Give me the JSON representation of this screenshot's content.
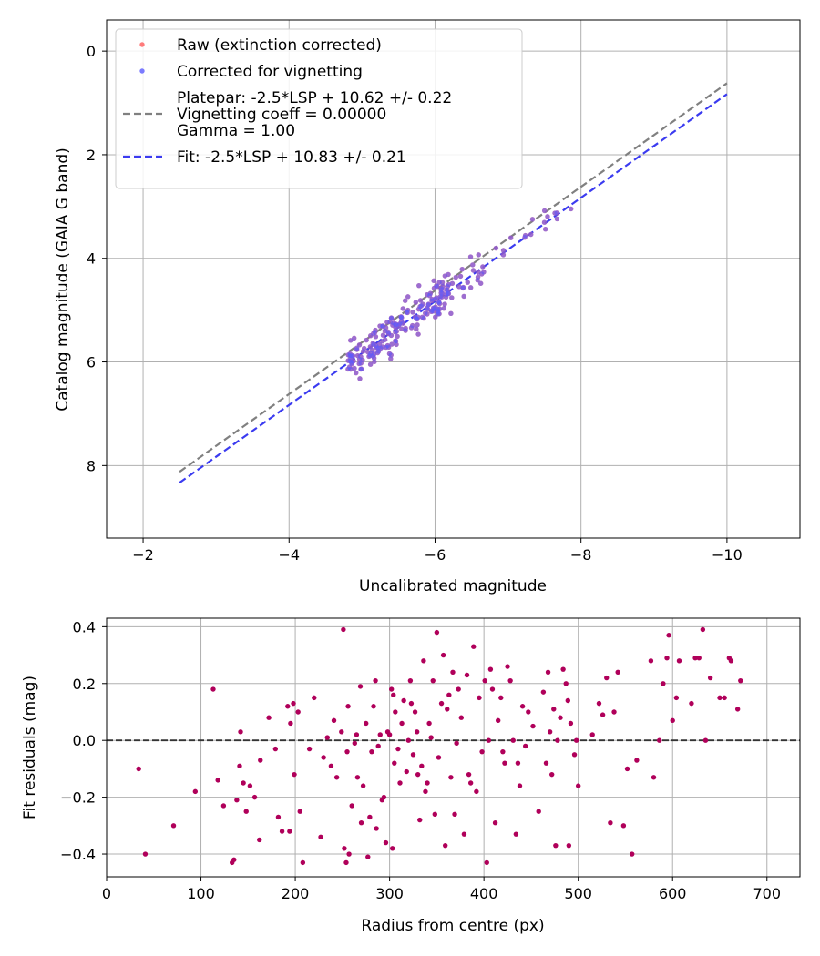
{
  "chart_data": [
    {
      "type": "scatter",
      "xlabel": "Uncalibrated magnitude",
      "ylabel": "Catalog magnitude (GAIA G band)",
      "xlim": [
        -1.5,
        -11.0
      ],
      "ylim": [
        9.4,
        -0.6
      ],
      "xticks": [
        -2,
        -4,
        -6,
        -8,
        -10
      ],
      "xtick_labels": [
        "−2",
        "−4",
        "−6",
        "−8",
        "−10"
      ],
      "yticks": [
        0,
        2,
        4,
        6,
        8
      ],
      "ytick_labels": [
        "0",
        "2",
        "4",
        "6",
        "8"
      ],
      "grid": true,
      "legend_position": "top-left",
      "series": [
        {
          "name": "Raw (extinction corrected)",
          "kind": "scatter",
          "color": "#ff5a5a",
          "point_count": 220
        },
        {
          "name": "Corrected for vignetting",
          "kind": "scatter",
          "color": "#5b5bff",
          "point_count": 220
        },
        {
          "name": "Platepar: -2.5*LSP + 10.62 +/- 0.22\nVignetting coeff = 0.00000\nGamma = 1.00",
          "kind": "line",
          "style": "dashed",
          "color": "#808080",
          "slope": 1,
          "intercept": 10.62,
          "sigma": 0.22
        },
        {
          "name": "Fit: -2.5*LSP + 10.83 +/- 0.21",
          "kind": "line",
          "style": "dashed",
          "color": "#3b3bf0",
          "slope": 1,
          "intercept": 10.83,
          "sigma": 0.21
        }
      ],
      "legend": [
        {
          "kind": "marker",
          "color": "#ff5a5a",
          "label": "Raw (extinction corrected)"
        },
        {
          "kind": "marker",
          "color": "#5b5bff",
          "label": "Corrected for vignetting"
        },
        {
          "kind": "line",
          "color": "#808080",
          "lines": [
            "Platepar: -2.5*LSP + 10.62 +/- 0.22",
            "Vignetting coeff = 0.00000",
            "Gamma = 1.00"
          ]
        },
        {
          "kind": "line",
          "color": "#3b3bf0",
          "lines": [
            "Fit: -2.5*LSP + 10.83 +/- 0.21"
          ]
        }
      ]
    },
    {
      "type": "scatter",
      "xlabel": "Radius from centre (px)",
      "ylabel": "Fit residuals (mag)",
      "xlim": [
        0,
        735
      ],
      "ylim": [
        -0.48,
        0.43
      ],
      "xticks": [
        0,
        100,
        200,
        300,
        400,
        500,
        600,
        700
      ],
      "xtick_labels": [
        "0",
        "100",
        "200",
        "300",
        "400",
        "500",
        "600",
        "700"
      ],
      "yticks": [
        -0.4,
        -0.2,
        0.0,
        0.2,
        0.4
      ],
      "ytick_labels": [
        "−0.4",
        "−0.2",
        "0.0",
        "0.2",
        "0.4"
      ],
      "grid": true,
      "zero_line": {
        "y": 0.0,
        "style": "dashed",
        "color": "#333333"
      },
      "point_color": "#b0005a",
      "points": [
        [
          34,
          -0.1
        ],
        [
          41,
          -0.4
        ],
        [
          71,
          -0.3
        ],
        [
          94,
          -0.18
        ],
        [
          113,
          0.18
        ],
        [
          118,
          -0.14
        ],
        [
          124,
          -0.23
        ],
        [
          133,
          -0.43
        ],
        [
          135,
          -0.42
        ],
        [
          138,
          -0.21
        ],
        [
          141,
          -0.09
        ],
        [
          142,
          0.03
        ],
        [
          145,
          -0.15
        ],
        [
          148,
          -0.25
        ],
        [
          152,
          -0.16
        ],
        [
          157,
          -0.2
        ],
        [
          162,
          -0.35
        ],
        [
          163,
          -0.07
        ],
        [
          172,
          0.08
        ],
        [
          179,
          -0.03
        ],
        [
          182,
          -0.27
        ],
        [
          186,
          -0.32
        ],
        [
          192,
          0.12
        ],
        [
          194,
          -0.32
        ],
        [
          195,
          0.06
        ],
        [
          198,
          0.13
        ],
        [
          199,
          -0.12
        ],
        [
          203,
          0.1
        ],
        [
          205,
          -0.25
        ],
        [
          208,
          -0.43
        ],
        [
          215,
          -0.03
        ],
        [
          220,
          0.15
        ],
        [
          227,
          -0.34
        ],
        [
          230,
          -0.06
        ],
        [
          234,
          0.01
        ],
        [
          238,
          -0.09
        ],
        [
          241,
          0.07
        ],
        [
          244,
          -0.13
        ],
        [
          249,
          0.03
        ],
        [
          251,
          0.39
        ],
        [
          252,
          -0.38
        ],
        [
          254,
          -0.43
        ],
        [
          255,
          -0.04
        ],
        [
          256,
          0.12
        ],
        [
          257,
          -0.4
        ],
        [
          260,
          -0.23
        ],
        [
          263,
          -0.01
        ],
        [
          265,
          0.02
        ],
        [
          266,
          -0.13
        ],
        [
          269,
          0.19
        ],
        [
          270,
          -0.29
        ],
        [
          272,
          -0.16
        ],
        [
          275,
          0.06
        ],
        [
          277,
          -0.41
        ],
        [
          279,
          -0.27
        ],
        [
          281,
          -0.04
        ],
        [
          283,
          0.12
        ],
        [
          285,
          0.21
        ],
        [
          286,
          -0.31
        ],
        [
          288,
          -0.02
        ],
        [
          290,
          0.02
        ],
        [
          292,
          -0.21
        ],
        [
          294,
          -0.2
        ],
        [
          296,
          -0.36
        ],
        [
          298,
          0.03
        ],
        [
          300,
          0.02
        ],
        [
          302,
          0.18
        ],
        [
          303,
          -0.38
        ],
        [
          304,
          0.16
        ],
        [
          305,
          -0.08
        ],
        [
          306,
          0.1
        ],
        [
          309,
          -0.03
        ],
        [
          311,
          -0.15
        ],
        [
          313,
          0.06
        ],
        [
          315,
          0.14
        ],
        [
          318,
          -0.11
        ],
        [
          320,
          0.0
        ],
        [
          322,
          0.21
        ],
        [
          323,
          0.13
        ],
        [
          325,
          -0.05
        ],
        [
          327,
          0.1
        ],
        [
          329,
          0.03
        ],
        [
          330,
          -0.12
        ],
        [
          332,
          -0.28
        ],
        [
          334,
          -0.09
        ],
        [
          336,
          0.28
        ],
        [
          338,
          -0.18
        ],
        [
          340,
          -0.15
        ],
        [
          342,
          0.06
        ],
        [
          344,
          0.01
        ],
        [
          346,
          0.21
        ],
        [
          348,
          -0.26
        ],
        [
          350,
          0.38
        ],
        [
          352,
          -0.06
        ],
        [
          355,
          0.13
        ],
        [
          357,
          0.3
        ],
        [
          359,
          -0.37
        ],
        [
          361,
          0.11
        ],
        [
          363,
          0.16
        ],
        [
          365,
          -0.13
        ],
        [
          367,
          0.24
        ],
        [
          369,
          -0.26
        ],
        [
          371,
          -0.01
        ],
        [
          373,
          0.18
        ],
        [
          376,
          0.08
        ],
        [
          379,
          -0.33
        ],
        [
          382,
          0.23
        ],
        [
          384,
          -0.12
        ],
        [
          386,
          -0.15
        ],
        [
          389,
          0.33
        ],
        [
          392,
          -0.18
        ],
        [
          395,
          0.15
        ],
        [
          398,
          -0.04
        ],
        [
          401,
          0.21
        ],
        [
          403,
          -0.43
        ],
        [
          405,
          0.0
        ],
        [
          407,
          0.25
        ],
        [
          409,
          0.18
        ],
        [
          412,
          -0.29
        ],
        [
          415,
          0.07
        ],
        [
          418,
          0.15
        ],
        [
          420,
          -0.04
        ],
        [
          422,
          -0.08
        ],
        [
          425,
          0.26
        ],
        [
          428,
          0.21
        ],
        [
          431,
          0.0
        ],
        [
          434,
          -0.33
        ],
        [
          436,
          -0.08
        ],
        [
          438,
          -0.16
        ],
        [
          441,
          0.12
        ],
        [
          444,
          -0.02
        ],
        [
          447,
          0.1
        ],
        [
          452,
          0.05
        ],
        [
          458,
          -0.25
        ],
        [
          463,
          0.17
        ],
        [
          466,
          -0.08
        ],
        [
          468,
          0.24
        ],
        [
          470,
          0.03
        ],
        [
          472,
          -0.12
        ],
        [
          474,
          0.11
        ],
        [
          476,
          -0.37
        ],
        [
          478,
          0.0
        ],
        [
          481,
          0.08
        ],
        [
          484,
          0.25
        ],
        [
          487,
          0.2
        ],
        [
          489,
          0.14
        ],
        [
          490,
          -0.37
        ],
        [
          492,
          0.06
        ],
        [
          496,
          -0.05
        ],
        [
          498,
          0.0
        ],
        [
          500,
          -0.16
        ],
        [
          515,
          0.02
        ],
        [
          522,
          0.13
        ],
        [
          526,
          0.09
        ],
        [
          530,
          0.22
        ],
        [
          534,
          -0.29
        ],
        [
          538,
          0.1
        ],
        [
          542,
          0.24
        ],
        [
          548,
          -0.3
        ],
        [
          552,
          -0.1
        ],
        [
          557,
          -0.4
        ],
        [
          562,
          -0.07
        ],
        [
          577,
          0.28
        ],
        [
          580,
          -0.13
        ],
        [
          586,
          0.0
        ],
        [
          590,
          0.2
        ],
        [
          594,
          0.29
        ],
        [
          596,
          0.37
        ],
        [
          600,
          0.07
        ],
        [
          604,
          0.15
        ],
        [
          607,
          0.28
        ],
        [
          620,
          0.13
        ],
        [
          624,
          0.29
        ],
        [
          628,
          0.29
        ],
        [
          632,
          0.39
        ],
        [
          635,
          0.0
        ],
        [
          640,
          0.22
        ],
        [
          650,
          0.15
        ],
        [
          655,
          0.15
        ],
        [
          660,
          0.29
        ],
        [
          662,
          0.28
        ],
        [
          669,
          0.11
        ],
        [
          672,
          0.21
        ]
      ]
    }
  ]
}
